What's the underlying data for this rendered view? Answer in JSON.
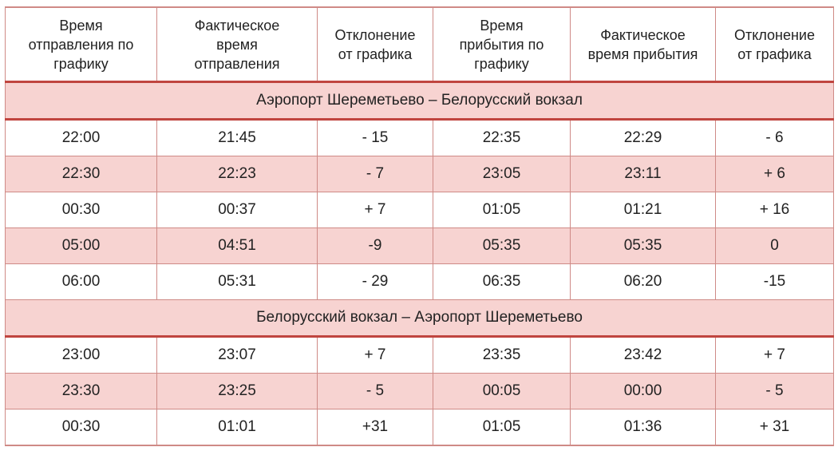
{
  "headers": [
    "Время\nотправления по\nграфику",
    "Фактическое\nвремя\nотправления",
    "Отклонение\nот графика",
    "Время\nприбытия по\nграфику",
    "Фактическое\nвремя прибытия",
    "Отклонение\nот графика"
  ],
  "sections": [
    {
      "title": "Аэропорт Шереметьево – Белорусский вокзал",
      "rows": [
        [
          "22:00",
          "21:45",
          "- 15",
          "22:35",
          "22:29",
          "- 6"
        ],
        [
          "22:30",
          "22:23",
          "- 7",
          "23:05",
          "23:11",
          "+ 6"
        ],
        [
          "00:30",
          "00:37",
          "+ 7",
          "01:05",
          "01:21",
          "+ 16"
        ],
        [
          "05:00",
          "04:51",
          "-9",
          "05:35",
          "05:35",
          "0"
        ],
        [
          "06:00",
          "05:31",
          "- 29",
          "06:35",
          "06:20",
          "-15"
        ]
      ]
    },
    {
      "title": "Белорусский вокзал – Аэропорт Шереметьево",
      "rows": [
        [
          "23:00",
          "23:07",
          "+ 7",
          "23:35",
          "23:42",
          "+ 7"
        ],
        [
          "23:30",
          "23:25",
          "- 5",
          "00:05",
          "00:00",
          "- 5"
        ],
        [
          "00:30",
          "01:01",
          "+31",
          "01:05",
          "01:36",
          "+ 31"
        ]
      ]
    }
  ],
  "colors": {
    "row_shade": "#f7d3d1",
    "accent_rule": "#c0453f",
    "grid": "#cf8a86"
  }
}
